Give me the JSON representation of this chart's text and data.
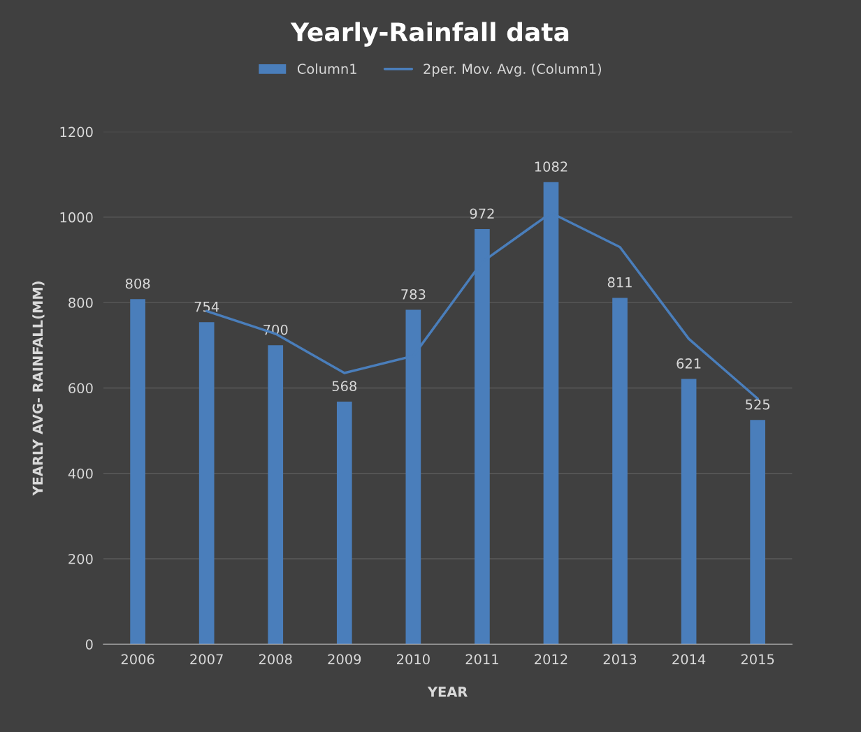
{
  "chart_data": {
    "type": "bar",
    "title": "Yearly-Rainfall data",
    "xlabel": "YEAR",
    "ylabel": "YEARLY AVG- RAINFALL(MM)",
    "categories": [
      "2006",
      "2007",
      "2008",
      "2009",
      "2010",
      "2011",
      "2012",
      "2013",
      "2014",
      "2015"
    ],
    "series": [
      {
        "name": "Column1",
        "color": "#4a7ebb",
        "values": [
          808,
          754,
          700,
          568,
          783,
          972,
          1082,
          811,
          621,
          525
        ],
        "data_labels": true
      },
      {
        "name": "2per. Mov. Avg. (Column1)",
        "type": "line",
        "color": "#4a7ebb",
        "values": [
          null,
          780,
          727,
          635,
          675,
          895,
          1010,
          930,
          715,
          575
        ]
      }
    ],
    "ylim": [
      0,
      1200
    ],
    "yticks": [
      0,
      200,
      400,
      600,
      800,
      1000,
      1200
    ],
    "grid": "y",
    "legend": "top"
  }
}
